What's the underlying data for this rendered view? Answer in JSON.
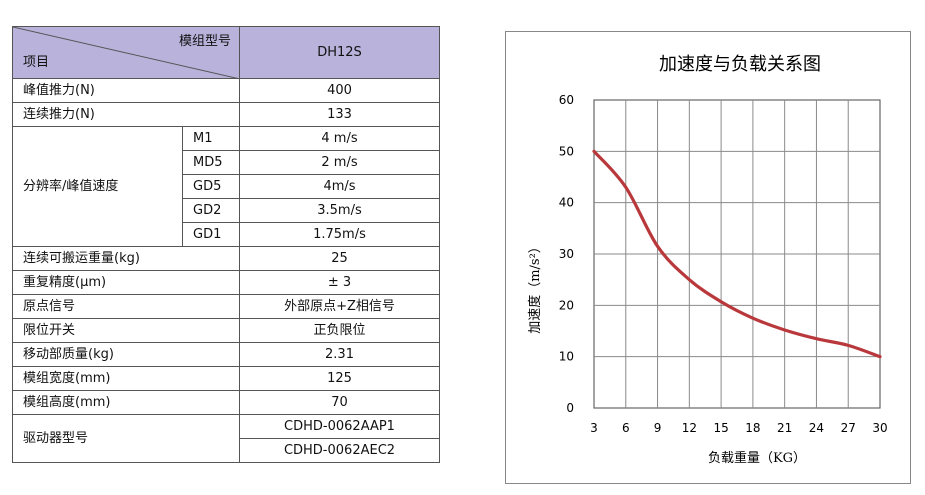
{
  "table": {
    "header_item": "项目",
    "header_model": "模组型号",
    "header_value": "DH12S",
    "rows": [
      {
        "label": "峰值推力(N)",
        "value": "400"
      },
      {
        "label": "连续推力(N)",
        "value": "133"
      }
    ],
    "resolution": {
      "label": "分辨率/峰值速度",
      "rows": [
        {
          "sub": "M1",
          "value": "4 m/s"
        },
        {
          "sub": "MD5",
          "value": "2 m/s"
        },
        {
          "sub": "GD5",
          "value": "4m/s"
        },
        {
          "sub": "GD2",
          "value": "3.5m/s"
        },
        {
          "sub": "GD1",
          "value": "1.75m/s"
        }
      ]
    },
    "rows2": [
      {
        "label": "连续可搬运重量(kg)",
        "value": "25"
      },
      {
        "label": "重复精度(μm)",
        "value": "± 3"
      },
      {
        "label": "原点信号",
        "value": "外部原点+Z相信号"
      },
      {
        "label": "限位开关",
        "value": "正负限位"
      },
      {
        "label": "移动部质量(kg)",
        "value": "2.31"
      },
      {
        "label": "模组宽度(mm)",
        "value": "125"
      },
      {
        "label": "模组高度(mm)",
        "value": "70"
      }
    ],
    "driver": {
      "label": "驱动器型号",
      "values": [
        "CDHD-0062AAP1",
        "CDHD-0062AEC2"
      ]
    }
  },
  "colors": {
    "header_bg": "#b9b3dc",
    "curve": "#b8383b",
    "grid": "#8a8a8a"
  },
  "chart_data": {
    "type": "line",
    "title": "加速度与负载关系图",
    "xlabel": "负载重量（KG）",
    "ylabel": "加速度（m/s²）",
    "x": [
      3,
      6,
      9,
      12,
      15,
      18,
      21,
      24,
      27,
      30
    ],
    "xlim": [
      3,
      30
    ],
    "ylim": [
      0,
      60
    ],
    "yticks": [
      0,
      10,
      20,
      30,
      40,
      50,
      60
    ],
    "grid": true,
    "series": [
      {
        "values": [
          50,
          43,
          31.5,
          25,
          20.7,
          17.5,
          15.2,
          13.5,
          12.2,
          10
        ]
      }
    ]
  }
}
